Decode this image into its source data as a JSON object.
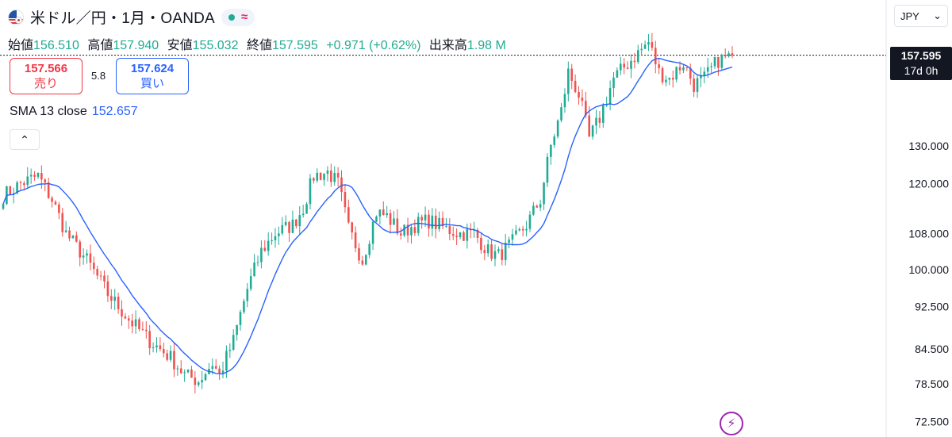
{
  "header": {
    "title": "米ドル／円・1月・OANDA",
    "market_status_icon": "green-dot-icon",
    "realtime_icon": "wave-icon"
  },
  "ohlc": {
    "open_label": "始値",
    "open": "156.510",
    "high_label": "高値",
    "high": "157.940",
    "low_label": "安値",
    "low": "155.032",
    "close_label": "終値",
    "close": "157.595",
    "change": "+0.971 (+0.62%)",
    "volume_label": "出来高",
    "volume": "1.98 M"
  },
  "trade": {
    "sell_price": "157.566",
    "sell_label": "売り",
    "spread": "5.8",
    "buy_price": "157.624",
    "buy_label": "買い"
  },
  "indicator": {
    "label": "SMA 13 close",
    "value": "152.657"
  },
  "currency_selector": {
    "value": "JPY"
  },
  "price_badge": {
    "price": "157.595",
    "countdown": "17d 0h"
  },
  "colors": {
    "up": "#22ab94",
    "down": "#ef5350",
    "sma": "#2962ff"
  },
  "chart_data": {
    "type": "candlestick",
    "y_scale": "log",
    "y_axis_ticks": [
      "130.000",
      "120.000",
      "108.000",
      "100.000",
      "92.500",
      "84.500",
      "78.500",
      "72.500"
    ],
    "ylim": [
      70,
      170
    ],
    "current_price": 157.595,
    "anchors": [
      [
        0,
        117
      ],
      [
        5,
        120
      ],
      [
        10,
        122
      ],
      [
        14,
        116
      ],
      [
        18,
        108
      ],
      [
        24,
        102
      ],
      [
        30,
        95
      ],
      [
        36,
        90
      ],
      [
        42,
        86
      ],
      [
        48,
        83
      ],
      [
        52,
        80
      ],
      [
        56,
        79
      ],
      [
        60,
        82
      ],
      [
        62,
        80
      ],
      [
        66,
        86
      ],
      [
        70,
        96
      ],
      [
        74,
        104
      ],
      [
        78,
        108
      ],
      [
        83,
        110
      ],
      [
        86,
        114
      ],
      [
        89,
        122
      ],
      [
        93,
        123
      ],
      [
        96,
        120
      ],
      [
        99,
        109
      ],
      [
        103,
        102
      ],
      [
        107,
        113
      ],
      [
        110,
        112
      ],
      [
        114,
        108
      ],
      [
        118,
        110
      ],
      [
        122,
        111
      ],
      [
        127,
        109
      ],
      [
        131,
        108
      ],
      [
        135,
        108
      ],
      [
        139,
        104
      ],
      [
        142,
        103
      ],
      [
        146,
        106
      ],
      [
        150,
        110
      ],
      [
        154,
        116
      ],
      [
        157,
        130
      ],
      [
        160,
        140
      ],
      [
        162,
        152
      ],
      [
        165,
        145
      ],
      [
        168,
        132
      ],
      [
        171,
        138
      ],
      [
        175,
        150
      ],
      [
        180,
        156
      ],
      [
        185,
        162
      ],
      [
        188,
        152
      ],
      [
        191,
        150
      ],
      [
        195,
        155
      ],
      [
        198,
        148
      ],
      [
        201,
        150
      ],
      [
        205,
        156
      ],
      [
        208,
        157
      ],
      [
        209,
        157.6
      ]
    ],
    "candle_count": 210,
    "sma_period": 13
  }
}
